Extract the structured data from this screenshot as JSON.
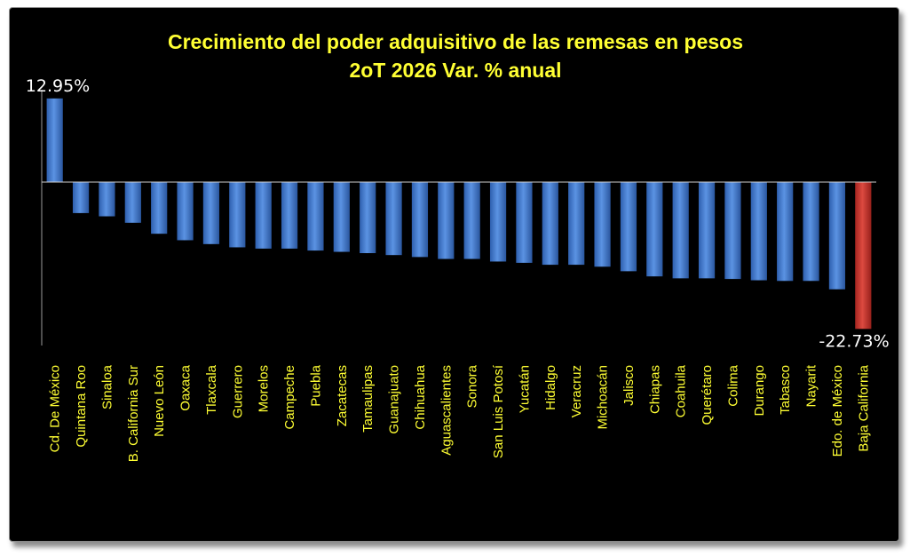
{
  "chart_data": {
    "type": "bar",
    "title": "Crecimiento del poder adquisitivo de las remesas en pesos",
    "subtitle": "2oT 2026 Var. % anual",
    "categories": [
      "Cd. De México",
      "Quintana Roo",
      "Sinaloa",
      "B. California Sur",
      "Nuevo León",
      "Oaxaca",
      "Tlaxcala",
      "Guerrero",
      "Morelos",
      "Campeche",
      "Puebla",
      "Zacatecas",
      "Tamaulipas",
      "Guanajuato",
      "Chihuahua",
      "Aguascalientes",
      "Sonora",
      "San Luis Potosí",
      "Yucatán",
      "Hidalgo",
      "Veracruz",
      "Michoacán",
      "Jalisco",
      "Chiapas",
      "Coahuila",
      "Querétaro",
      "Colima",
      "Durango",
      "Tabasco",
      "Nayarit",
      "Edo. de México",
      "Baja California"
    ],
    "values": [
      12.95,
      -4.8,
      -5.3,
      -6.3,
      -8.0,
      -9.0,
      -9.6,
      -10.1,
      -10.3,
      -10.3,
      -10.6,
      -10.8,
      -11.0,
      -11.3,
      -11.6,
      -11.9,
      -11.9,
      -12.3,
      -12.5,
      -12.8,
      -12.8,
      -13.1,
      -13.8,
      -14.6,
      -14.9,
      -14.9,
      -15.0,
      -15.2,
      -15.3,
      -15.3,
      -16.6,
      -22.73
    ],
    "data_labels": [
      {
        "index": 0,
        "text": "12.95%"
      },
      {
        "index": 31,
        "text": "-22.73%"
      }
    ],
    "ylim": [
      -25.3,
      14.3
    ],
    "colors": {
      "bars": "#4a7fcf",
      "highlight": "#c0312b",
      "text": "#ffff33",
      "background": "#000000"
    },
    "highlight_index": 31,
    "grid": false,
    "legend": "none"
  }
}
